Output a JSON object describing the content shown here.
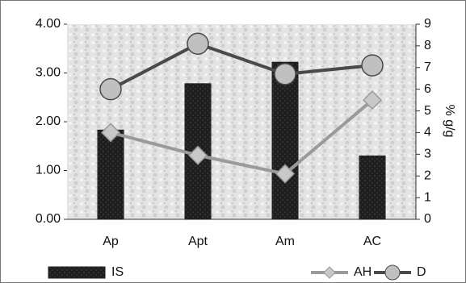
{
  "chart_data": {
    "type": "bar-line",
    "y2_label": "% g/g",
    "categories": [
      "Ap",
      "Apt",
      "Am",
      "AC"
    ],
    "series": [
      {
        "name": "IS",
        "type": "bar",
        "color": "#1e1e1e",
        "axis": "y",
        "values": [
          1.83,
          2.78,
          3.22,
          1.3
        ]
      },
      {
        "name": "AH",
        "type": "line",
        "marker": "diamond",
        "color": "#9a9a9a",
        "axis": "y2",
        "values": [
          4.0,
          2.95,
          2.1,
          5.5
        ]
      },
      {
        "name": "D",
        "type": "line",
        "marker": "circle",
        "color": "#4a4a4a",
        "axis": "y2",
        "values": [
          6.0,
          8.1,
          6.7,
          7.1
        ]
      }
    ],
    "ylim": [
      0,
      4
    ],
    "yticks": [
      {
        "value": 0,
        "label": "0.00"
      },
      {
        "value": 1,
        "label": "1.00"
      },
      {
        "value": 2,
        "label": "2.00"
      },
      {
        "value": 3,
        "label": "3.00"
      },
      {
        "value": 4,
        "label": "4.00"
      }
    ],
    "y2lim": [
      0,
      9
    ],
    "y2ticks": [
      0,
      1,
      2,
      3,
      4,
      5,
      6,
      7,
      8,
      9
    ]
  }
}
